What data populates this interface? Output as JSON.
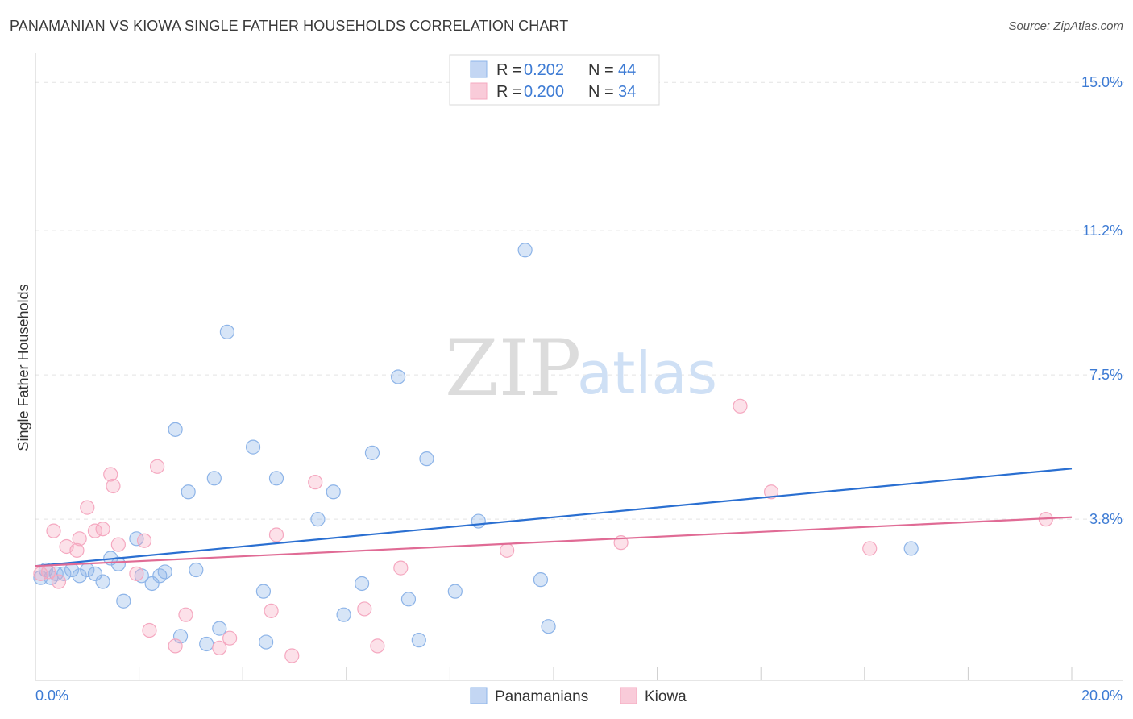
{
  "title": "PANAMANIAN VS KIOWA SINGLE FATHER HOUSEHOLDS CORRELATION CHART",
  "source": "Source: ZipAtlas.com",
  "watermark": {
    "zip": "ZIP",
    "atlas": "atlas"
  },
  "legend": {
    "r_label": "R =",
    "n_label": "N =",
    "entries": [
      {
        "r": "0.202",
        "n": "44"
      },
      {
        "r": "0.200",
        "n": "34"
      }
    ]
  },
  "chart_data": {
    "type": "scatter",
    "title": "PANAMANIAN VS KIOWA SINGLE FATHER HOUSEHOLDS CORRELATION CHART",
    "xlabel": "",
    "ylabel": "Single Father Households",
    "xlim": [
      0,
      20
    ],
    "ylim": [
      0,
      15.5
    ],
    "x_tick_labels": [
      "0.0%",
      "20.0%"
    ],
    "y_ticks": [
      3.8,
      7.5,
      11.2,
      15.0
    ],
    "y_tick_labels": [
      "3.8%",
      "7.5%",
      "11.2%",
      "15.0%"
    ],
    "grid": true,
    "series": [
      {
        "name": "Panamanians",
        "color": "#8db4e8",
        "line_color": "#2a6fd1",
        "trend": {
          "x": [
            0,
            20
          ],
          "y": [
            2.6,
            5.1
          ]
        },
        "points": [
          {
            "x": 0.1,
            "y": 2.3
          },
          {
            "x": 0.2,
            "y": 2.5
          },
          {
            "x": 0.3,
            "y": 2.3
          },
          {
            "x": 0.4,
            "y": 2.4
          },
          {
            "x": 0.55,
            "y": 2.4
          },
          {
            "x": 0.7,
            "y": 2.5
          },
          {
            "x": 0.85,
            "y": 2.35
          },
          {
            "x": 1.0,
            "y": 2.5
          },
          {
            "x": 1.15,
            "y": 2.4
          },
          {
            "x": 1.3,
            "y": 2.2
          },
          {
            "x": 1.45,
            "y": 2.8
          },
          {
            "x": 1.6,
            "y": 2.65
          },
          {
            "x": 1.7,
            "y": 1.7
          },
          {
            "x": 1.95,
            "y": 3.3
          },
          {
            "x": 2.05,
            "y": 2.35
          },
          {
            "x": 2.25,
            "y": 2.15
          },
          {
            "x": 2.4,
            "y": 2.35
          },
          {
            "x": 2.5,
            "y": 2.45
          },
          {
            "x": 2.7,
            "y": 6.1
          },
          {
            "x": 2.8,
            "y": 0.8
          },
          {
            "x": 2.95,
            "y": 4.5
          },
          {
            "x": 3.1,
            "y": 2.5
          },
          {
            "x": 3.3,
            "y": 0.6
          },
          {
            "x": 3.45,
            "y": 4.85
          },
          {
            "x": 3.55,
            "y": 1.0
          },
          {
            "x": 3.7,
            "y": 8.6
          },
          {
            "x": 4.2,
            "y": 5.65
          },
          {
            "x": 4.4,
            "y": 1.95
          },
          {
            "x": 4.45,
            "y": 0.65
          },
          {
            "x": 4.65,
            "y": 4.85
          },
          {
            "x": 5.45,
            "y": 3.8
          },
          {
            "x": 5.75,
            "y": 4.5
          },
          {
            "x": 5.95,
            "y": 1.35
          },
          {
            "x": 6.3,
            "y": 2.15
          },
          {
            "x": 6.5,
            "y": 5.5
          },
          {
            "x": 7.0,
            "y": 7.45
          },
          {
            "x": 7.2,
            "y": 1.75
          },
          {
            "x": 7.4,
            "y": 0.7
          },
          {
            "x": 7.55,
            "y": 5.35
          },
          {
            "x": 8.1,
            "y": 1.95
          },
          {
            "x": 8.55,
            "y": 3.75
          },
          {
            "x": 9.45,
            "y": 10.7
          },
          {
            "x": 9.75,
            "y": 2.25
          },
          {
            "x": 9.9,
            "y": 1.05
          },
          {
            "x": 16.9,
            "y": 3.05
          }
        ]
      },
      {
        "name": "Kiowa",
        "color": "#f5a8c0",
        "line_color": "#e06b95",
        "trend": {
          "x": [
            0,
            20
          ],
          "y": [
            2.6,
            3.85
          ]
        },
        "points": [
          {
            "x": 0.1,
            "y": 2.4
          },
          {
            "x": 0.25,
            "y": 2.45
          },
          {
            "x": 0.35,
            "y": 3.5
          },
          {
            "x": 0.45,
            "y": 2.2
          },
          {
            "x": 0.6,
            "y": 3.1
          },
          {
            "x": 0.8,
            "y": 3.0
          },
          {
            "x": 0.85,
            "y": 3.3
          },
          {
            "x": 1.0,
            "y": 4.1
          },
          {
            "x": 1.15,
            "y": 3.5
          },
          {
            "x": 1.3,
            "y": 3.55
          },
          {
            "x": 1.45,
            "y": 4.95
          },
          {
            "x": 1.5,
            "y": 4.65
          },
          {
            "x": 1.6,
            "y": 3.15
          },
          {
            "x": 1.95,
            "y": 2.4
          },
          {
            "x": 2.1,
            "y": 3.25
          },
          {
            "x": 2.2,
            "y": 0.95
          },
          {
            "x": 2.35,
            "y": 5.15
          },
          {
            "x": 2.7,
            "y": 0.55
          },
          {
            "x": 2.9,
            "y": 1.35
          },
          {
            "x": 3.55,
            "y": 0.5
          },
          {
            "x": 3.75,
            "y": 0.75
          },
          {
            "x": 4.55,
            "y": 1.45
          },
          {
            "x": 4.65,
            "y": 3.4
          },
          {
            "x": 4.95,
            "y": 0.3
          },
          {
            "x": 5.4,
            "y": 4.75
          },
          {
            "x": 6.35,
            "y": 1.5
          },
          {
            "x": 6.6,
            "y": 0.55
          },
          {
            "x": 7.05,
            "y": 2.55
          },
          {
            "x": 9.1,
            "y": 3.0
          },
          {
            "x": 11.3,
            "y": 3.2
          },
          {
            "x": 13.6,
            "y": 6.7
          },
          {
            "x": 14.2,
            "y": 4.5
          },
          {
            "x": 16.1,
            "y": 3.05
          },
          {
            "x": 19.5,
            "y": 3.8
          }
        ]
      }
    ]
  }
}
